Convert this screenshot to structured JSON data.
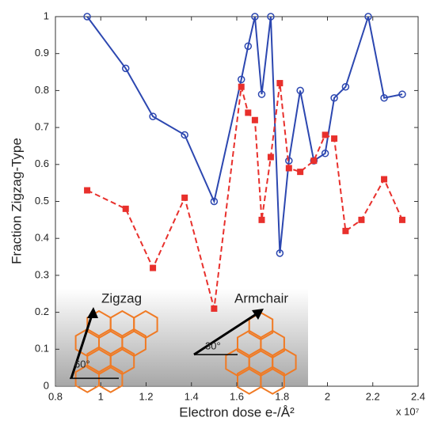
{
  "chart_data": {
    "type": "line",
    "x_label": "Electron dose e-/Å²",
    "y_label": "Fraction Zigzag-Type",
    "x_multiplier": "x 10⁷",
    "annotations": [
      "Zigzag",
      "Armchair",
      "60°",
      "30°"
    ],
    "xlim": [
      0.8,
      2.4
    ],
    "xticks": [
      0.8,
      1,
      1.2,
      1.4,
      1.6,
      1.8,
      2,
      2.2,
      2.4
    ],
    "ylim": [
      0,
      1
    ],
    "yticks": [
      0,
      0.1,
      0.2,
      0.3,
      0.4,
      0.5,
      0.6,
      0.7,
      0.8,
      0.9,
      1
    ],
    "series": [
      {
        "color": "#2c47b0",
        "marker": "circle",
        "dash": false,
        "x": [
          0.94,
          1.11,
          1.23,
          1.37,
          1.5,
          1.62,
          1.65,
          1.68,
          1.71,
          1.75,
          1.79,
          1.83,
          1.88,
          1.94,
          1.99,
          2.03,
          2.08,
          2.18,
          2.25,
          2.33
        ],
        "values": [
          1,
          0.86,
          0.73,
          0.68,
          0.5,
          0.83,
          0.92,
          1,
          0.79,
          1,
          0.36,
          0.61,
          0.8,
          0.61,
          0.63,
          0.78,
          0.81,
          1,
          0.78,
          0.79
        ]
      },
      {
        "color": "#e8302c",
        "marker": "square",
        "dash": true,
        "x": [
          0.94,
          1.11,
          1.23,
          1.37,
          1.5,
          1.62,
          1.65,
          1.68,
          1.71,
          1.75,
          1.79,
          1.83,
          1.88,
          1.94,
          1.99,
          2.03,
          2.08,
          2.15,
          2.25,
          2.33
        ],
        "values": [
          0.53,
          0.48,
          0.32,
          0.51,
          0.21,
          0.81,
          0.74,
          0.72,
          0.45,
          0.62,
          0.82,
          0.59,
          0.58,
          0.61,
          0.68,
          0.67,
          0.42,
          0.45,
          0.56,
          0.45
        ]
      }
    ]
  }
}
